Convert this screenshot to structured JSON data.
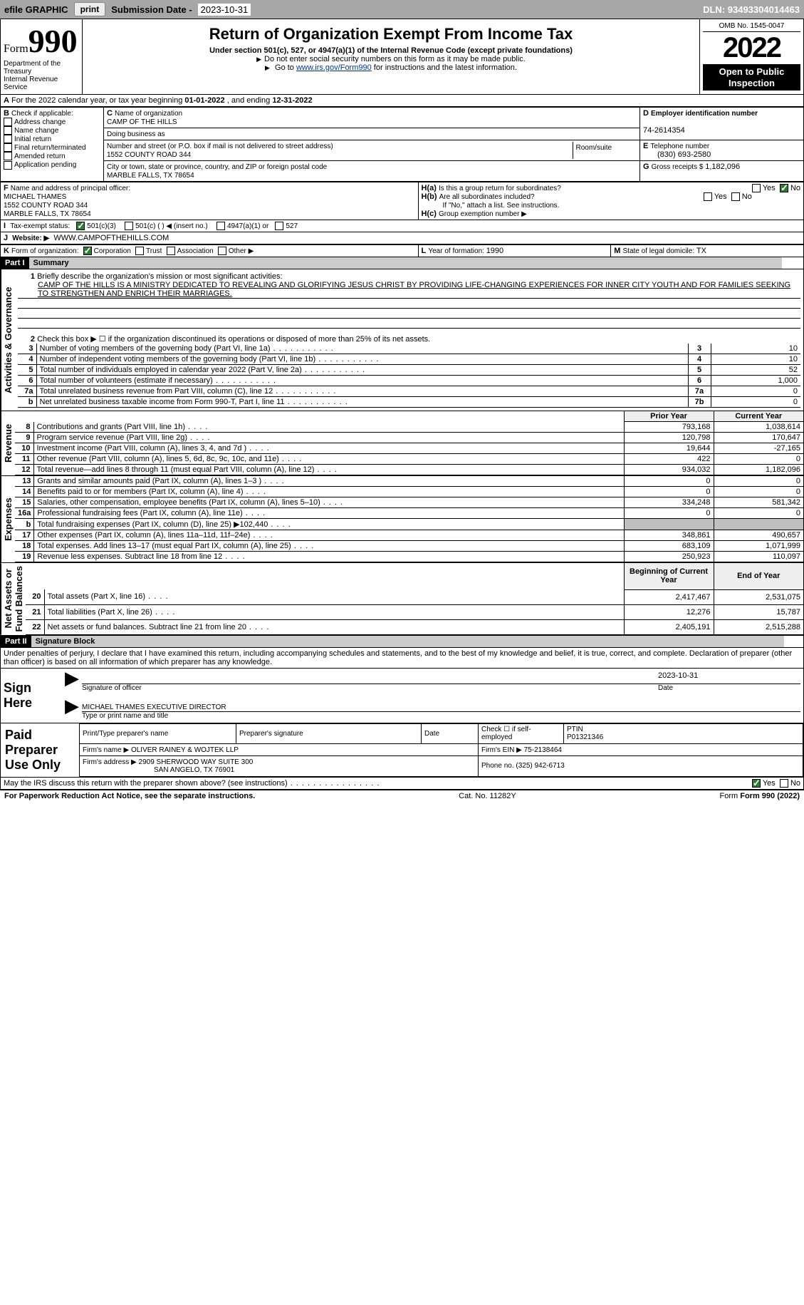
{
  "top": {
    "efile": "efile GRAPHIC",
    "print": "print",
    "subdate_label": "Submission Date - ",
    "subdate": "2023-10-31",
    "dln_label": "DLN: ",
    "dln": "93493304014463"
  },
  "header": {
    "form_word": "Form",
    "form_num": "990",
    "dept": "Department of the Treasury\nInternal Revenue Service",
    "title": "Return of Organization Exempt From Income Tax",
    "sub": "Under section 501(c), 527, or 4947(a)(1) of the Internal Revenue Code (except private foundations)",
    "note1": "Do not enter social security numbers on this form as it may be made public.",
    "note2a": "Go to ",
    "note2b": "www.irs.gov/Form990",
    "note2c": " for instructions and the latest information.",
    "omb": "OMB No. 1545-0047",
    "year": "2022",
    "openpub": "Open to Public\nInspection"
  },
  "a": {
    "line": "For the 2022 calendar year, or tax year beginning ",
    "begin": "01-01-2022",
    "mid": " , and ending ",
    "end": "12-31-2022"
  },
  "b": {
    "label": "Check if applicable:",
    "opts": [
      "Address change",
      "Name change",
      "Initial return",
      "Final return/terminated",
      "Amended return",
      "Application pending"
    ]
  },
  "c": {
    "name_label": "Name of organization",
    "name": "CAMP OF THE HILLS",
    "dba_label": "Doing business as",
    "street_label": "Number and street (or P.O. box if mail is not delivered to street address)",
    "room_label": "Room/suite",
    "street": "1552 COUNTY ROAD 344",
    "city_label": "City or town, state or province, country, and ZIP or foreign postal code",
    "city": "MARBLE FALLS, TX  78654"
  },
  "d": {
    "label": "Employer identification number",
    "val": "74-2614354"
  },
  "e": {
    "label": "Telephone number",
    "val": "(830) 693-2580"
  },
  "g": {
    "label": "Gross receipts $ ",
    "val": "1,182,096"
  },
  "f": {
    "label": "Name and address of principal officer:",
    "name": "MICHAEL THAMES",
    "addr1": "1552 COUNTY ROAD 344",
    "addr2": "MARBLE FALLS, TX  78654"
  },
  "h": {
    "a": "Is this a group return for subordinates?",
    "yes": "Yes",
    "no": "No",
    "b": "Are all subordinates included?",
    "b_note": "If \"No,\" attach a list. See instructions.",
    "c": "Group exemption number ▶"
  },
  "i": {
    "label": "Tax-exempt status:",
    "opt1": "501(c)(3)",
    "opt2": "501(c) (   ) ◀ (insert no.)",
    "opt3": "4947(a)(1) or",
    "opt4": "527"
  },
  "j": {
    "label": "Website: ▶",
    "val": "WWW.CAMPOFTHEHILLS.COM"
  },
  "k": {
    "label": "Form of organization:",
    "opts": [
      "Corporation",
      "Trust",
      "Association",
      "Other ▶"
    ]
  },
  "l": {
    "label": "Year of formation: ",
    "val": "1990"
  },
  "m": {
    "label": "State of legal domicile: ",
    "val": "TX"
  },
  "part1": {
    "hdr": "Part I",
    "title": "Summary",
    "q1": "Briefly describe the organization's mission or most significant activities:",
    "mission": "CAMP OF THE HILLS IS A MINISTRY DEDICATED TO REVEALING AND GLORIFYING JESUS CHRIST BY PROVIDING LIFE-CHANGING EXPERIENCES FOR INNER CITY YOUTH AND FOR FAMILIES SEEKING TO STRENGTHEN AND ENRICH THEIR MARRIAGES.",
    "q2": "Check this box ▶ ☐  if the organization discontinued its operations or disposed of more than 25% of its net assets.",
    "rows": [
      {
        "n": "3",
        "lbl": "Number of voting members of the governing body (Part VI, line 1a)",
        "box": "3",
        "val": "10"
      },
      {
        "n": "4",
        "lbl": "Number of independent voting members of the governing body (Part VI, line 1b)",
        "box": "4",
        "val": "10"
      },
      {
        "n": "5",
        "lbl": "Total number of individuals employed in calendar year 2022 (Part V, line 2a)",
        "box": "5",
        "val": "52"
      },
      {
        "n": "6",
        "lbl": "Total number of volunteers (estimate if necessary)",
        "box": "6",
        "val": "1,000"
      },
      {
        "n": "7a",
        "lbl": "Total unrelated business revenue from Part VIII, column (C), line 12",
        "box": "7a",
        "val": "0"
      },
      {
        "n": "b",
        "lbl": "Net unrelated business taxable income from Form 990-T, Part I, line 11",
        "box": "7b",
        "val": "0"
      }
    ],
    "py": "Prior Year",
    "cy": "Current Year",
    "rev": [
      {
        "n": "8",
        "lbl": "Contributions and grants (Part VIII, line 1h)",
        "p": "793,168",
        "c": "1,038,614"
      },
      {
        "n": "9",
        "lbl": "Program service revenue (Part VIII, line 2g)",
        "p": "120,798",
        "c": "170,647"
      },
      {
        "n": "10",
        "lbl": "Investment income (Part VIII, column (A), lines 3, 4, and 7d )",
        "p": "19,644",
        "c": "-27,165"
      },
      {
        "n": "11",
        "lbl": "Other revenue (Part VIII, column (A), lines 5, 6d, 8c, 9c, 10c, and 11e)",
        "p": "422",
        "c": "0"
      },
      {
        "n": "12",
        "lbl": "Total revenue—add lines 8 through 11 (must equal Part VIII, column (A), line 12)",
        "p": "934,032",
        "c": "1,182,096"
      }
    ],
    "exp": [
      {
        "n": "13",
        "lbl": "Grants and similar amounts paid (Part IX, column (A), lines 1–3 )",
        "p": "0",
        "c": "0"
      },
      {
        "n": "14",
        "lbl": "Benefits paid to or for members (Part IX, column (A), line 4)",
        "p": "0",
        "c": "0"
      },
      {
        "n": "15",
        "lbl": "Salaries, other compensation, employee benefits (Part IX, column (A), lines 5–10)",
        "p": "334,248",
        "c": "581,342"
      },
      {
        "n": "16a",
        "lbl": "Professional fundraising fees (Part IX, column (A), line 11e)",
        "p": "0",
        "c": "0"
      },
      {
        "n": "b",
        "lbl": "Total fundraising expenses (Part IX, column (D), line 25) ▶102,440",
        "p": "",
        "c": "",
        "grey": true
      },
      {
        "n": "17",
        "lbl": "Other expenses (Part IX, column (A), lines 11a–11d, 11f–24e)",
        "p": "348,861",
        "c": "490,657"
      },
      {
        "n": "18",
        "lbl": "Total expenses. Add lines 13–17 (must equal Part IX, column (A), line 25)",
        "p": "683,109",
        "c": "1,071,999"
      },
      {
        "n": "19",
        "lbl": "Revenue less expenses. Subtract line 18 from line 12",
        "p": "250,923",
        "c": "110,097"
      }
    ],
    "bcy": "Beginning of Current Year",
    "ey": "End of Year",
    "na": [
      {
        "n": "20",
        "lbl": "Total assets (Part X, line 16)",
        "p": "2,417,467",
        "c": "2,531,075"
      },
      {
        "n": "21",
        "lbl": "Total liabilities (Part X, line 26)",
        "p": "12,276",
        "c": "15,787"
      },
      {
        "n": "22",
        "lbl": "Net assets or fund balances. Subtract line 21 from line 20",
        "p": "2,405,191",
        "c": "2,515,288"
      }
    ],
    "side": {
      "act": "Activities & Governance",
      "rev": "Revenue",
      "exp": "Expenses",
      "na": "Net Assets or\nFund Balances"
    }
  },
  "part2": {
    "hdr": "Part II",
    "title": "Signature Block",
    "decl": "Under penalties of perjury, I declare that I have examined this return, including accompanying schedules and statements, and to the best of my knowledge and belief, it is true, correct, and complete. Declaration of preparer (other than officer) is based on all information of which preparer has any knowledge.",
    "sign_here": "Sign\nHere",
    "sig_of_officer": "Signature of officer",
    "date": "Date",
    "sig_date": "2023-10-31",
    "officer": "MICHAEL THAMES  EXECUTIVE DIRECTOR",
    "type_name": "Type or print name and title",
    "paid": "Paid\nPreparer\nUse Only",
    "print_name_lbl": "Print/Type preparer's name",
    "prep_sig_lbl": "Preparer's signature",
    "date_lbl": "Date",
    "check_self": "Check ☐ if self-employed",
    "ptin_lbl": "PTIN",
    "ptin": "P01321346",
    "firm_name_lbl": "Firm's name      ▶",
    "firm_name": "OLIVER RAINEY & WOJTEK LLP",
    "firm_ein_lbl": "Firm's EIN ▶",
    "firm_ein": "75-2138464",
    "firm_addr_lbl": "Firm's address ▶",
    "firm_addr1": "2909 SHERWOOD WAY SUITE 300",
    "firm_addr2": "SAN ANGELO, TX  76901",
    "phone_lbl": "Phone no. ",
    "phone": "(325) 942-6713",
    "discuss": "May the IRS discuss this return with the preparer shown above? (see instructions)",
    "yes": "Yes",
    "no": "No"
  },
  "foot": {
    "pra": "For Paperwork Reduction Act Notice, see the separate instructions.",
    "cat": "Cat. No. 11282Y",
    "form": "Form 990 (2022)"
  }
}
